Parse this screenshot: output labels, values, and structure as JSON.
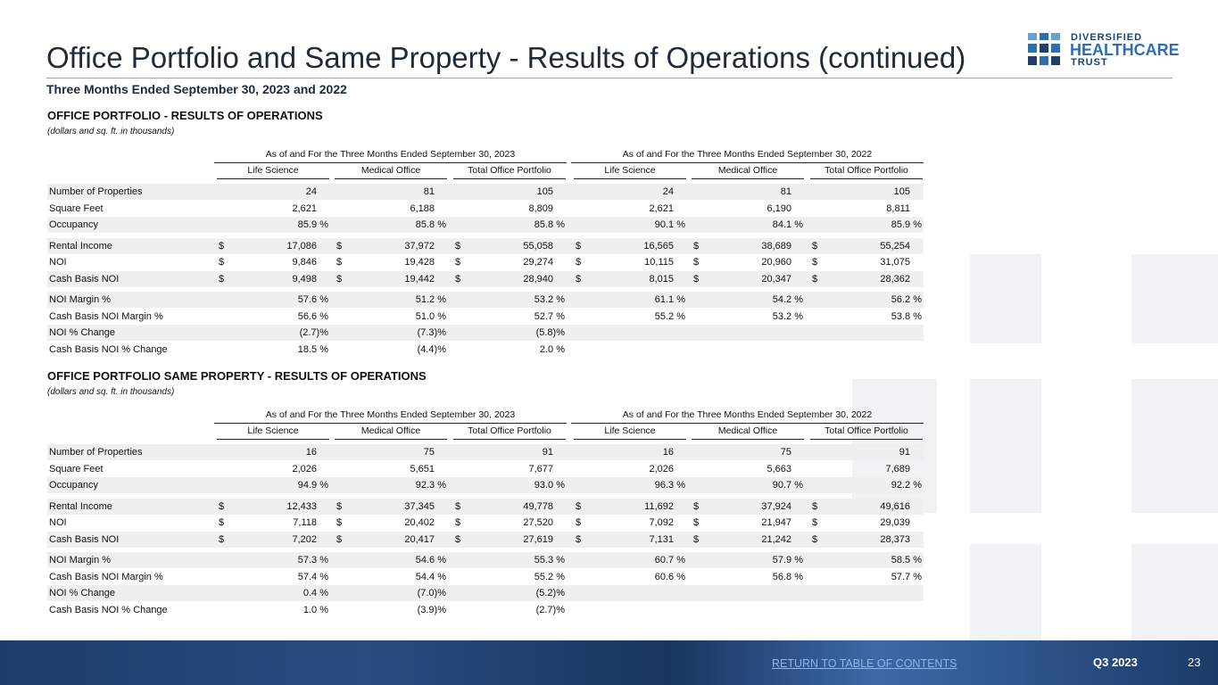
{
  "header": {
    "title": "Office Portfolio and Same Property - Results of Operations (continued)",
    "subtitle": "Three Months Ended September 30, 2023 and 2022"
  },
  "logo": {
    "line1": "DIVERSIFIED",
    "line2": "HEALTHCARE",
    "line3": "TRUST"
  },
  "sections": [
    {
      "title": "OFFICE PORTFOLIO -  RESULTS OF OPERATIONS",
      "note": "(dollars and sq. ft. in thousands)",
      "group_headers": [
        "As of and For the Three Months Ended September 30, 2023",
        "As of and For the Three Months Ended September 30, 2022"
      ],
      "columns": [
        "Life Science",
        "Medical Office",
        "Total Office Portfolio",
        "Life Science",
        "Medical Office",
        "Total Office Portfolio"
      ],
      "groups": [
        [
          {
            "label": "Number of Properties",
            "cells": [
              "24",
              "81",
              "105",
              "24",
              "81",
              "105"
            ]
          },
          {
            "label": "Square Feet",
            "cells": [
              "2,621",
              "6,188",
              "8,809",
              "2,621",
              "6,190",
              "8,811"
            ]
          },
          {
            "label": "Occupancy",
            "cells": [
              "85.9 %",
              "85.8 %",
              "85.8 %",
              "90.1 %",
              "84.1 %",
              "85.9 %"
            ]
          }
        ],
        [
          {
            "label": "Rental Income",
            "currency": "$",
            "cells": [
              "17,086",
              "37,972",
              "55,058",
              "16,565",
              "38,689",
              "55,254"
            ]
          },
          {
            "label": "NOI",
            "currency": "$",
            "cells": [
              "9,846",
              "19,428",
              "29,274",
              "10,115",
              "20,960",
              "31,075"
            ]
          },
          {
            "label": "Cash Basis NOI",
            "currency": "$",
            "cells": [
              "9,498",
              "19,442",
              "28,940",
              "8,015",
              "20,347",
              "28,362"
            ]
          }
        ],
        [
          {
            "label": "NOI Margin %",
            "cells": [
              "57.6 %",
              "51.2 %",
              "53.2 %",
              "61.1 %",
              "54.2 %",
              "56.2 %"
            ]
          },
          {
            "label": "Cash Basis NOI Margin %",
            "cells": [
              "56.6 %",
              "51.0 %",
              "52.7 %",
              "55.2 %",
              "53.2 %",
              "53.8 %"
            ]
          },
          {
            "label": "NOI % Change",
            "cells": [
              "(2.7)%",
              "(7.3)%",
              "(5.8)%"
            ]
          },
          {
            "label": "Cash Basis NOI % Change",
            "cells": [
              "18.5 %",
              "(4.4)%",
              "2.0 %"
            ]
          }
        ]
      ]
    },
    {
      "title": "OFFICE PORTFOLIO SAME PROPERTY - RESULTS OF OPERATIONS",
      "note": "(dollars and sq. ft. in thousands)",
      "group_headers": [
        "As of and For the Three Months Ended September 30, 2023",
        "As of and For the Three Months Ended September 30, 2022"
      ],
      "columns": [
        "Life Science",
        "Medical Office",
        "Total Office Portfolio",
        "Life Science",
        "Medical Office",
        "Total Office Portfolio"
      ],
      "groups": [
        [
          {
            "label": "Number of Properties",
            "cells": [
              "16",
              "75",
              "91",
              "16",
              "75",
              "91"
            ]
          },
          {
            "label": "Square Feet",
            "cells": [
              "2,026",
              "5,651",
              "7,677",
              "2,026",
              "5,663",
              "7,689"
            ]
          },
          {
            "label": "Occupancy",
            "cells": [
              "94.9 %",
              "92.3 %",
              "93.0 %",
              "96.3 %",
              "90.7 %",
              "92.2 %"
            ]
          }
        ],
        [
          {
            "label": "Rental Income",
            "currency": "$",
            "cells": [
              "12,433",
              "37,345",
              "49,778",
              "11,692",
              "37,924",
              "49,616"
            ]
          },
          {
            "label": "NOI",
            "currency": "$",
            "cells": [
              "7,118",
              "20,402",
              "27,520",
              "7,092",
              "21,947",
              "29,039"
            ]
          },
          {
            "label": "Cash Basis NOI",
            "currency": "$",
            "cells": [
              "7,202",
              "20,417",
              "27,619",
              "7,131",
              "21,242",
              "28,373"
            ]
          }
        ],
        [
          {
            "label": "NOI Margin %",
            "cells": [
              "57.3 %",
              "54.6 %",
              "55.3 %",
              "60.7 %",
              "57.9 %",
              "58.5 %"
            ]
          },
          {
            "label": "Cash Basis NOI Margin %",
            "cells": [
              "57.4 %",
              "54.4 %",
              "55.2 %",
              "60.6 %",
              "56.8 %",
              "57.7 %"
            ]
          },
          {
            "label": "NOI % Change",
            "cells": [
              "0.4 %",
              "(7.0)%",
              "(5.2)%"
            ]
          },
          {
            "label": "Cash Basis NOI % Change",
            "cells": [
              "1.0 %",
              "(3.9)%",
              "(2.7)%"
            ]
          }
        ]
      ]
    }
  ],
  "footer": {
    "link": "RETURN TO TABLE OF CONTENTS",
    "period": "Q3 2023",
    "page": "23"
  }
}
